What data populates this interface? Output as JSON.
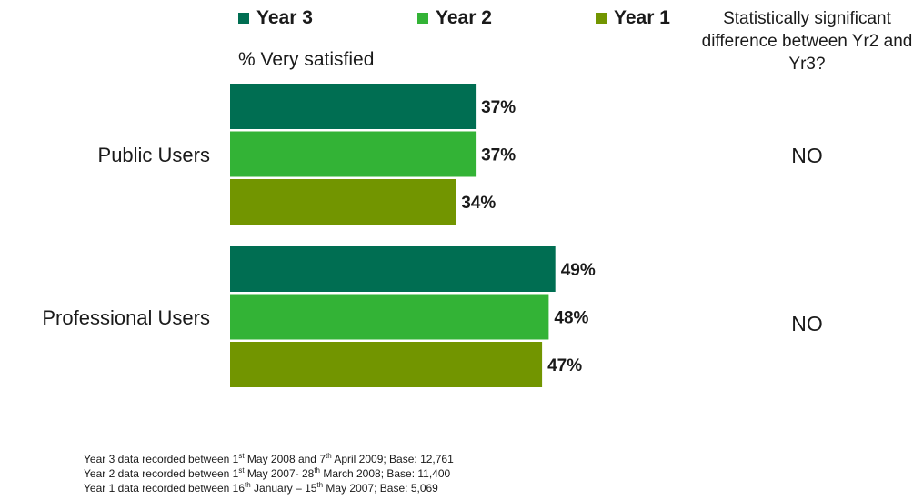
{
  "chart_data": {
    "type": "bar",
    "orientation": "horizontal",
    "title": "",
    "ylabel": "% Very satisfied",
    "categories": [
      "Public Users",
      "Professional Users"
    ],
    "series": [
      {
        "name": "Year 3",
        "color": "#006e52",
        "values": [
          37,
          49
        ],
        "labels": [
          "37%",
          "49%"
        ]
      },
      {
        "name": "Year 2",
        "color": "#33b336",
        "values": [
          37,
          48
        ],
        "labels": [
          "37%",
          "48%"
        ]
      },
      {
        "name": "Year 1",
        "color": "#729500",
        "values": [
          34,
          47
        ],
        "labels": [
          "34%",
          "47%"
        ]
      }
    ],
    "xlim": [
      0,
      100
    ],
    "grid": false,
    "legend_position": "top",
    "significance": {
      "header": "Statistically significant difference between Yr2 and Yr3?",
      "values": [
        "NO",
        "NO"
      ]
    }
  },
  "footnotes": [
    {
      "parts": [
        "Year 3 data recorded between 1",
        "st",
        " May 2008 and 7",
        "th",
        " April 2009; Base: 12,761"
      ]
    },
    {
      "parts": [
        "Year 2 data recorded between 1",
        "st",
        " May 2007- 28",
        "th",
        " March 2008; Base: 11,400"
      ]
    },
    {
      "parts": [
        "Year 1 data recorded between 16",
        "th",
        " January – 15",
        "th",
        " May 2007; Base: 5,069"
      ]
    }
  ]
}
